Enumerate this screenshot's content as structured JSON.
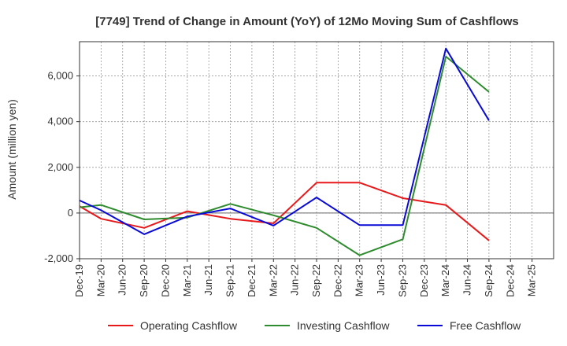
{
  "chart_data": {
    "type": "line",
    "title": "[7749]  Trend of Change in Amount (YoY) of 12Mo Moving Sum of Cashflows",
    "xlabel": "",
    "ylabel": "Amount (million yen)",
    "ylim": [
      -2000,
      7500
    ],
    "yticks": [
      -2000,
      0,
      2000,
      4000,
      6000
    ],
    "ytick_labels": [
      "-2,000",
      "0",
      "2,000",
      "4,000",
      "6,000"
    ],
    "grid": true,
    "legend_position": "bottom",
    "categories": [
      "Dec-19",
      "Mar-20",
      "Jun-20",
      "Sep-20",
      "Dec-20",
      "Mar-21",
      "Jun-21",
      "Sep-21",
      "Dec-21",
      "Mar-22",
      "Jun-22",
      "Sep-22",
      "Dec-22",
      "Mar-23",
      "Jun-23",
      "Sep-23",
      "Dec-23",
      "Mar-24",
      "Jun-24",
      "Sep-24",
      "Dec-24",
      "Mar-25"
    ],
    "x_labels": [
      "Dec-19",
      "Mar-20",
      "Jun-20",
      "Sep-20",
      "Dec-20",
      "Mar-21",
      "Jun-21",
      "Sep-21",
      "Dec-21",
      "Mar-22",
      "Jun-22",
      "Sep-22",
      "Dec-22",
      "Mar-23",
      "Jun-23",
      "Sep-23",
      "Dec-23",
      "Mar-24",
      "Jun-24",
      "Sep-24",
      "Dec-24",
      "Mar-25"
    ],
    "series": [
      {
        "name": "Operating Cashflow",
        "color": "#e8191a",
        "points": [
          [
            0,
            300
          ],
          [
            1,
            -250
          ],
          [
            3,
            -650
          ],
          [
            5,
            80
          ],
          [
            7,
            -250
          ],
          [
            9,
            -450
          ],
          [
            11,
            1330
          ],
          [
            13,
            1330
          ],
          [
            15,
            650
          ],
          [
            17,
            350
          ],
          [
            19,
            -1200
          ]
        ]
      },
      {
        "name": "Investing Cashflow",
        "color": "#2e8b2e",
        "points": [
          [
            0,
            250
          ],
          [
            1,
            350
          ],
          [
            3,
            -280
          ],
          [
            5,
            -200
          ],
          [
            7,
            400
          ],
          [
            9,
            -100
          ],
          [
            11,
            -650
          ],
          [
            13,
            -1850
          ],
          [
            15,
            -1150
          ],
          [
            17,
            6850
          ],
          [
            19,
            5300
          ]
        ]
      },
      {
        "name": "Free Cashflow",
        "color": "#0a0ad6",
        "points": [
          [
            0,
            550
          ],
          [
            1,
            120
          ],
          [
            3,
            -930
          ],
          [
            5,
            -150
          ],
          [
            7,
            200
          ],
          [
            9,
            -550
          ],
          [
            11,
            680
          ],
          [
            13,
            -530
          ],
          [
            15,
            -530
          ],
          [
            17,
            7200
          ],
          [
            19,
            4050
          ]
        ]
      }
    ]
  }
}
